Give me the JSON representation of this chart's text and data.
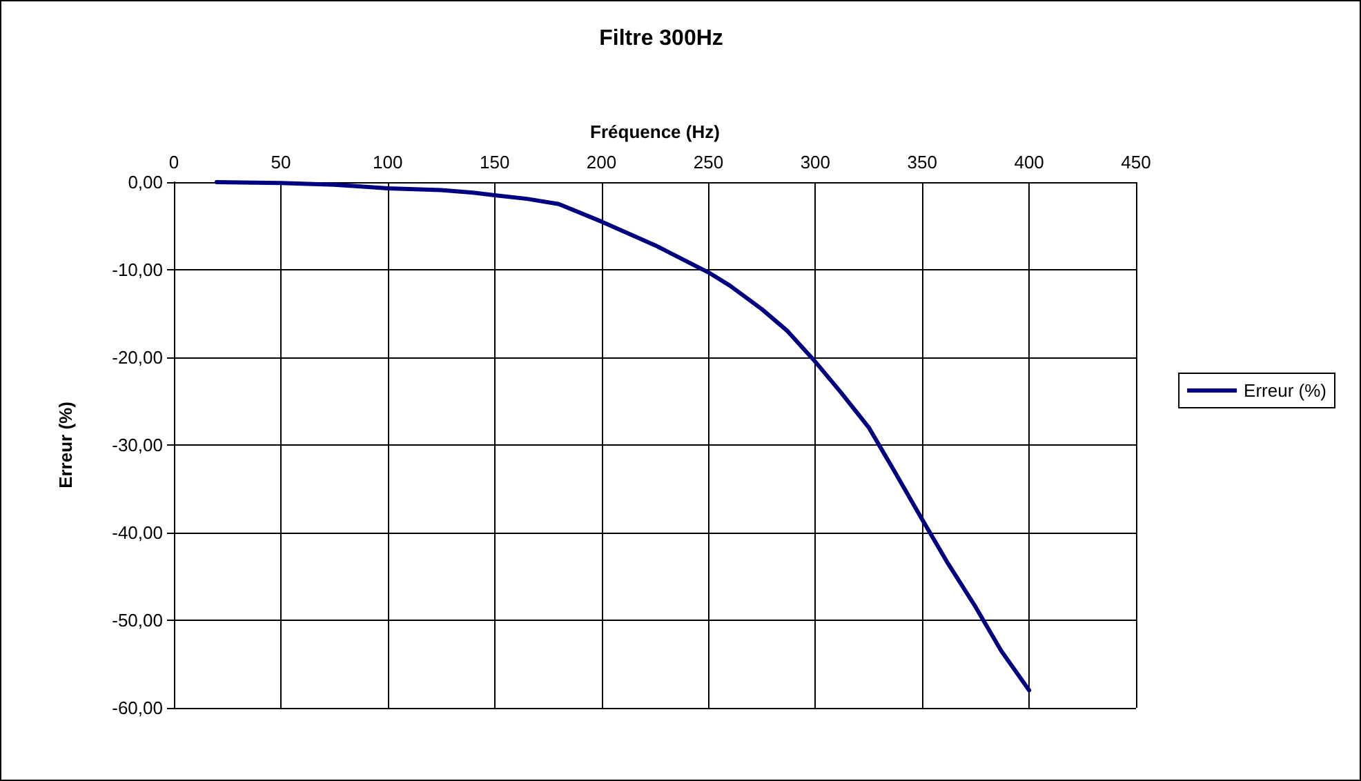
{
  "chart_data": {
    "type": "line",
    "title": "Filtre 300Hz",
    "xlabel": "Fréquence (Hz)",
    "ylabel": "Erreur (%)",
    "x": [
      20,
      50,
      75,
      100,
      125,
      140,
      150,
      165,
      180,
      200,
      225,
      250,
      260,
      275,
      287,
      300,
      312,
      325,
      337,
      350,
      362,
      375,
      387,
      400
    ],
    "series": [
      {
        "name": "Erreur (%)",
        "color": "#000080",
        "values": [
          0,
          -0.1,
          -0.3,
          -0.7,
          -0.9,
          -1.2,
          -1.5,
          -1.9,
          -2.5,
          -4.5,
          -7.2,
          -10.3,
          -11.8,
          -14.5,
          -17,
          -20.5,
          -24,
          -28,
          -33,
          -38.5,
          -43.5,
          -48.5,
          -53.5,
          -58
        ]
      }
    ],
    "xlim": [
      0,
      450
    ],
    "xticks": [
      0,
      50,
      100,
      150,
      200,
      250,
      300,
      350,
      400,
      450
    ],
    "ylim": [
      -60,
      0
    ],
    "yticks": [
      {
        "value": 0,
        "label": "0,00"
      },
      {
        "value": -10,
        "label": "-10,00"
      },
      {
        "value": -20,
        "label": "-20,00"
      },
      {
        "value": -30,
        "label": "-30,00"
      },
      {
        "value": -40,
        "label": "-40,00"
      },
      {
        "value": -50,
        "label": "-50,00"
      },
      {
        "value": -60,
        "label": "-60,00"
      }
    ],
    "grid": true,
    "legend": "right",
    "marker": "none",
    "line_style": "solid"
  }
}
